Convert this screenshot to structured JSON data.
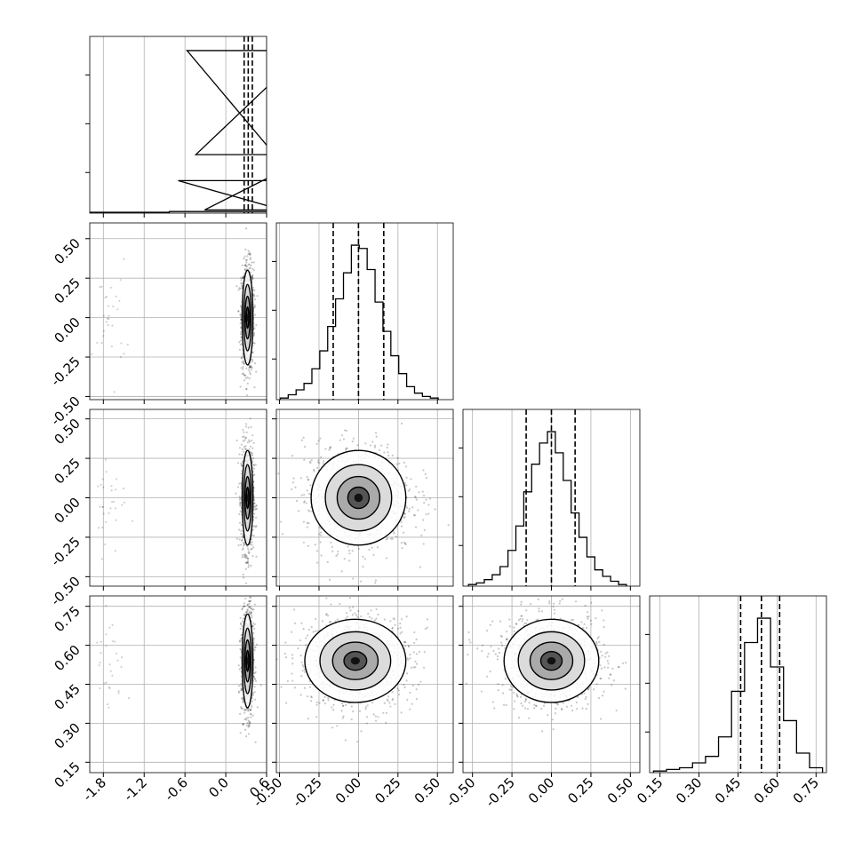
{
  "chart_data": {
    "type": "corner",
    "grid": true,
    "num_params": 4,
    "ranges": [
      [
        -2.0,
        0.6
      ],
      [
        -0.52,
        0.6
      ],
      [
        -0.56,
        0.56
      ],
      [
        0.11,
        0.79
      ]
    ],
    "x_ticks": [
      [
        "-1.8",
        "-1.2",
        "-0.6",
        "0.0",
        "0.6"
      ],
      [
        "-0.50",
        "-0.25",
        "0.00",
        "0.25",
        "0.50"
      ],
      [
        "-0.50",
        "-0.25",
        "0.00",
        "0.25",
        "0.50"
      ],
      [
        "0.15",
        "0.30",
        "0.45",
        "0.60",
        "0.75"
      ]
    ],
    "y_ticks": [
      null,
      [
        "-0.50",
        "-0.25",
        "0.00",
        "0.25",
        "0.50"
      ],
      [
        "-0.50",
        "-0.25",
        "0.00",
        "0.25",
        "0.50"
      ],
      [
        "0.15",
        "0.30",
        "0.45",
        "0.60",
        "0.75"
      ]
    ],
    "histograms": [
      {
        "param": 0,
        "quantiles": [
          0.27,
          0.33,
          0.39
        ],
        "bins": [
          {
            "x": -1.7,
            "y": 0.005
          },
          {
            "x": 0.04,
            "y": 0.01
          },
          {
            "x": 0.17,
            "y": 0.2
          },
          {
            "x": 0.3,
            "y": 1.0
          },
          {
            "x": 0.43,
            "y": 0.36
          },
          {
            "x": 0.56,
            "y": 0.02
          }
        ]
      },
      {
        "param": 1,
        "quantiles": [
          -0.16,
          0.0,
          0.16
        ],
        "bins": [
          {
            "x": -0.47,
            "y": 0.01
          },
          {
            "x": -0.42,
            "y": 0.03
          },
          {
            "x": -0.37,
            "y": 0.06
          },
          {
            "x": -0.32,
            "y": 0.1
          },
          {
            "x": -0.27,
            "y": 0.19
          },
          {
            "x": -0.22,
            "y": 0.3
          },
          {
            "x": -0.17,
            "y": 0.45
          },
          {
            "x": -0.12,
            "y": 0.62
          },
          {
            "x": -0.07,
            "y": 0.78
          },
          {
            "x": -0.02,
            "y": 0.95
          },
          {
            "x": 0.03,
            "y": 0.93
          },
          {
            "x": 0.08,
            "y": 0.8
          },
          {
            "x": 0.13,
            "y": 0.6
          },
          {
            "x": 0.18,
            "y": 0.42
          },
          {
            "x": 0.23,
            "y": 0.27
          },
          {
            "x": 0.28,
            "y": 0.16
          },
          {
            "x": 0.33,
            "y": 0.08
          },
          {
            "x": 0.38,
            "y": 0.04
          },
          {
            "x": 0.43,
            "y": 0.02
          },
          {
            "x": 0.48,
            "y": 0.01
          }
        ]
      },
      {
        "param": 2,
        "quantiles": [
          -0.16,
          0.0,
          0.15
        ],
        "bins": [
          {
            "x": -0.5,
            "y": 0.01
          },
          {
            "x": -0.45,
            "y": 0.02
          },
          {
            "x": -0.4,
            "y": 0.04
          },
          {
            "x": -0.35,
            "y": 0.07
          },
          {
            "x": -0.3,
            "y": 0.12
          },
          {
            "x": -0.25,
            "y": 0.22
          },
          {
            "x": -0.2,
            "y": 0.37
          },
          {
            "x": -0.15,
            "y": 0.58
          },
          {
            "x": -0.1,
            "y": 0.75
          },
          {
            "x": -0.05,
            "y": 0.88
          },
          {
            "x": 0.0,
            "y": 0.95
          },
          {
            "x": 0.05,
            "y": 0.82
          },
          {
            "x": 0.1,
            "y": 0.65
          },
          {
            "x": 0.15,
            "y": 0.45
          },
          {
            "x": 0.2,
            "y": 0.3
          },
          {
            "x": 0.25,
            "y": 0.18
          },
          {
            "x": 0.3,
            "y": 0.1
          },
          {
            "x": 0.35,
            "y": 0.06
          },
          {
            "x": 0.4,
            "y": 0.03
          },
          {
            "x": 0.45,
            "y": 0.01
          }
        ]
      },
      {
        "param": 3,
        "quantiles": [
          0.46,
          0.54,
          0.61
        ],
        "bins": [
          {
            "x": 0.15,
            "y": 0.01
          },
          {
            "x": 0.2,
            "y": 0.02
          },
          {
            "x": 0.25,
            "y": 0.03
          },
          {
            "x": 0.3,
            "y": 0.06
          },
          {
            "x": 0.35,
            "y": 0.1
          },
          {
            "x": 0.4,
            "y": 0.22
          },
          {
            "x": 0.45,
            "y": 0.5
          },
          {
            "x": 0.5,
            "y": 0.8
          },
          {
            "x": 0.55,
            "y": 0.95
          },
          {
            "x": 0.6,
            "y": 0.65
          },
          {
            "x": 0.65,
            "y": 0.32
          },
          {
            "x": 0.7,
            "y": 0.12
          },
          {
            "x": 0.75,
            "y": 0.03
          }
        ]
      }
    ],
    "scatter_panels": [
      {
        "x_param": 0,
        "y_param": 1,
        "x_peak": 0.32,
        "y_peak": 0.0,
        "x_sd": 0.04,
        "y_sd": 0.15,
        "outlier_x": -1.7,
        "outlier_y": 0.0
      },
      {
        "x_param": 0,
        "y_param": 2,
        "x_peak": 0.32,
        "y_peak": 0.0,
        "x_sd": 0.04,
        "y_sd": 0.15,
        "outlier_x": -1.7,
        "outlier_y": 0.0
      },
      {
        "x_param": 1,
        "y_param": 2,
        "x_peak": 0.0,
        "y_peak": 0.0,
        "x_sd": 0.15,
        "y_sd": 0.15
      },
      {
        "x_param": 0,
        "y_param": 3,
        "x_peak": 0.32,
        "y_peak": 0.54,
        "x_sd": 0.04,
        "y_sd": 0.09,
        "outlier_x": -1.7,
        "outlier_y": 0.55
      },
      {
        "x_param": 1,
        "y_param": 3,
        "x_peak": -0.02,
        "y_peak": 0.54,
        "x_sd": 0.16,
        "y_sd": 0.08
      },
      {
        "x_param": 2,
        "y_param": 3,
        "x_peak": 0.0,
        "y_peak": 0.54,
        "x_sd": 0.15,
        "y_sd": 0.08
      }
    ]
  }
}
